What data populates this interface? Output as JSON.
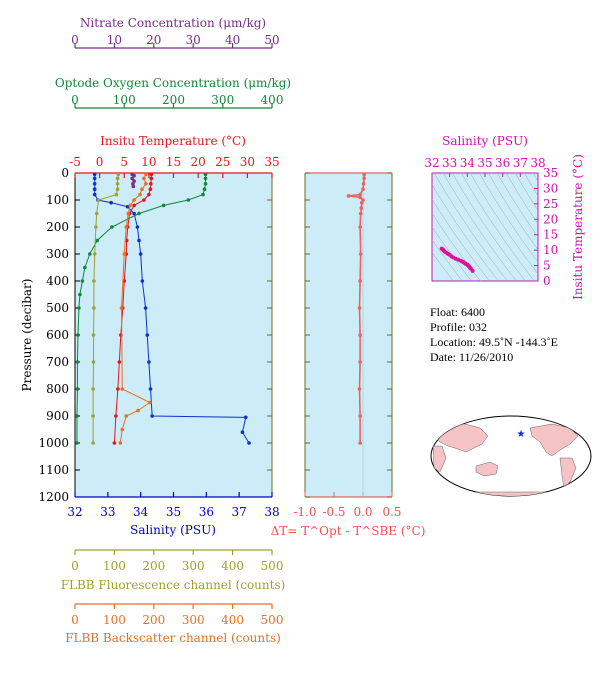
{
  "chart_data": [
    {
      "type": "line",
      "panel": "main",
      "axes": {
        "pressure": {
          "label": "Pressure (decibar)",
          "range": [
            0,
            1200
          ],
          "ticks": [
            0,
            100,
            200,
            300,
            400,
            500,
            600,
            700,
            800,
            900,
            1000,
            1100,
            1200
          ],
          "inverted": true
        },
        "temperature": {
          "label": "Insitu Temperature (°C)",
          "range": [
            -5,
            35
          ],
          "ticks": [
            -5,
            0,
            5,
            10,
            15,
            20,
            25,
            30,
            35
          ],
          "color": "#e8141c"
        },
        "salinity": {
          "label": "Salinity (PSU)",
          "range": [
            32,
            38
          ],
          "ticks": [
            32,
            33,
            34,
            35,
            36,
            37,
            38
          ],
          "color": "#0000cc"
        },
        "nitrate": {
          "label": "Nitrate Concentration (μm/kg)",
          "range": [
            0,
            50
          ],
          "ticks": [
            0,
            10,
            20,
            30,
            40,
            50
          ],
          "color": "#7a2a8a"
        },
        "oxygen": {
          "label": "Optode Oxygen Concentration (μm/kg)",
          "range": [
            0,
            400
          ],
          "ticks": [
            0,
            100,
            200,
            300,
            400
          ],
          "color": "#12873a"
        },
        "fluorescence": {
          "label": "FLBB Fluorescence channel (counts)",
          "range": [
            0,
            500
          ],
          "ticks": [
            0,
            100,
            200,
            300,
            400,
            500
          ],
          "color": "#a0a030"
        },
        "backscatter": {
          "label": "FLBB Backscatter channel (counts)",
          "range": [
            0,
            500
          ],
          "ticks": [
            0,
            100,
            200,
            300,
            400,
            500
          ],
          "color": "#e87020"
        }
      },
      "series": [
        {
          "axis": "temperature",
          "color": "#e8141c",
          "pressure": [
            5,
            20,
            40,
            60,
            80,
            100,
            120,
            150,
            200,
            250,
            300,
            400,
            500,
            600,
            700,
            800,
            900,
            1000
          ],
          "values": [
            10.5,
            10.5,
            10.4,
            10.3,
            10.0,
            9.0,
            7.0,
            6.1,
            5.7,
            5.5,
            5.4,
            5.0,
            4.7,
            4.3,
            4.0,
            3.7,
            3.3,
            3.0
          ]
        },
        {
          "axis": "salinity",
          "color": "#1030d0",
          "pressure": [
            5,
            20,
            40,
            60,
            80,
            100,
            110,
            125,
            150,
            200,
            250,
            300,
            400,
            500,
            600,
            700,
            800,
            900,
            905,
            960,
            1000
          ],
          "values": [
            32.6,
            32.6,
            32.6,
            32.6,
            32.6,
            32.7,
            33.1,
            33.6,
            33.8,
            33.9,
            33.95,
            34.0,
            34.05,
            34.15,
            34.2,
            34.25,
            34.3,
            34.35,
            37.2,
            37.1,
            37.3
          ]
        },
        {
          "axis": "oxygen",
          "color": "#12873a",
          "pressure": [
            5,
            20,
            40,
            60,
            80,
            100,
            120,
            150,
            200,
            250,
            300,
            350,
            400,
            450,
            500,
            600,
            700,
            800,
            900,
            1000
          ],
          "values": [
            265,
            265,
            265,
            263,
            260,
            230,
            180,
            130,
            75,
            45,
            30,
            20,
            15,
            10,
            8,
            6,
            5,
            5,
            4,
            4
          ]
        },
        {
          "axis": "nitrate",
          "color": "#7a2a8a",
          "pressure": [
            5,
            10,
            20,
            30,
            40,
            50
          ],
          "values": [
            14.5,
            15,
            14.5,
            15,
            14.7,
            14.8
          ]
        },
        {
          "axis": "fluorescence",
          "color": "#a0a030",
          "pressure": [
            5,
            20,
            40,
            60,
            80,
            100,
            150,
            200,
            300,
            400,
            500,
            600,
            700,
            800,
            900,
            1000
          ],
          "values": [
            110,
            108,
            108,
            108,
            105,
            60,
            55,
            53,
            50,
            48,
            48,
            47,
            47,
            46,
            46,
            46
          ]
        },
        {
          "axis": "backscatter",
          "color": "#e87020",
          "pressure": [
            5,
            20,
            40,
            60,
            80,
            100,
            120,
            150,
            200,
            300,
            500,
            800,
            850,
            880,
            900,
            950,
            1000
          ],
          "values": [
            180,
            175,
            180,
            170,
            165,
            150,
            140,
            135,
            130,
            125,
            118,
            120,
            190,
            160,
            130,
            120,
            115
          ]
        }
      ]
    },
    {
      "type": "line",
      "panel": "delta-t",
      "xlabel": "ΔT= T^Opt - T^SBE (°C)",
      "xlim": [
        -1.0,
        0.5
      ],
      "xticks": [
        "-1.0",
        "-0.5",
        "0.0",
        "0.5"
      ],
      "ylim": [
        0,
        1200
      ],
      "series": [
        {
          "color": "#f06060",
          "pressure": [
            5,
            20,
            40,
            60,
            80,
            85,
            90,
            100,
            110,
            130,
            150,
            200,
            300,
            400,
            500,
            600,
            700,
            800,
            900,
            1000
          ],
          "values": [
            0.02,
            0.02,
            0.01,
            0.0,
            -0.05,
            -0.25,
            -0.05,
            0.0,
            -0.02,
            -0.03,
            -0.04,
            -0.05,
            -0.04,
            -0.05,
            -0.06,
            -0.05,
            -0.05,
            -0.06,
            -0.05,
            -0.05
          ]
        }
      ]
    },
    {
      "type": "scatter",
      "panel": "t-s",
      "xlabel": "Salinity (PSU)",
      "ylabel": "Insitu Temperature (°C)",
      "xlim": [
        32,
        38
      ],
      "ylim": [
        0,
        35
      ],
      "xticks": [
        32,
        33,
        34,
        35,
        36,
        37,
        38
      ],
      "yticks": [
        0,
        5,
        10,
        15,
        20,
        25,
        30,
        35
      ],
      "color": "#e0109a",
      "x": [
        32.55,
        32.6,
        32.65,
        32.7,
        32.8,
        32.9,
        33.0,
        33.1,
        33.2,
        33.35,
        33.5,
        33.65,
        33.75,
        33.85,
        33.9,
        34.0,
        34.05,
        34.1,
        34.15,
        34.2,
        34.3
      ],
      "y": [
        10.5,
        10.3,
        10.0,
        9.6,
        9.2,
        8.8,
        8.5,
        8.0,
        7.6,
        7.2,
        6.9,
        6.5,
        6.2,
        5.8,
        5.6,
        5.3,
        5.0,
        4.7,
        4.3,
        4.0,
        3.3
      ]
    }
  ],
  "info": {
    "float": "Float:  6400",
    "profile": "Profile:  032",
    "location": "Location:  49.5˚N  -144.3˚E",
    "date": "Date:  11/26/2010"
  },
  "map": {
    "marker_color": "#1030d0",
    "land_color": "#f4c4c4",
    "ocean_color": "#ffffff"
  },
  "colors": {
    "panel_bg": "#ccecf8",
    "axis_olive": "#6b6b1e"
  }
}
